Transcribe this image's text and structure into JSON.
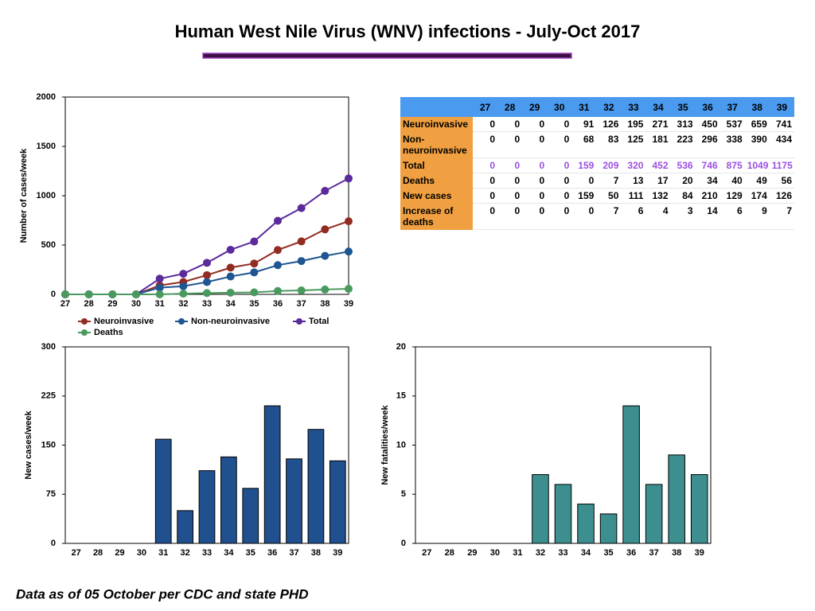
{
  "title": "Human West Nile Virus (WNV) infections - July-Oct 2017",
  "footnote": "Data as of 05 October per CDC and state PHD",
  "chart_data": [
    {
      "type": "line",
      "ylabel": "Number of cases/week",
      "categories": [
        "27",
        "28",
        "29",
        "30",
        "31",
        "32",
        "33",
        "34",
        "35",
        "36",
        "37",
        "38",
        "39"
      ],
      "ylim": [
        0,
        2000
      ],
      "yticks": [
        0,
        500,
        1000,
        1500,
        2000
      ],
      "grid": false,
      "legend": "bottom",
      "series": [
        {
          "name": "Neuroinvasive",
          "color": "#922b21",
          "values": [
            0,
            0,
            0,
            0,
            91,
            126,
            195,
            271,
            313,
            450,
            537,
            659,
            741
          ]
        },
        {
          "name": "Non-neuroinvasive",
          "color": "#1f5591",
          "values": [
            0,
            0,
            0,
            0,
            68,
            83,
            125,
            181,
            223,
            296,
            338,
            390,
            434
          ]
        },
        {
          "name": "Total",
          "color": "#5b2a9b",
          "values": [
            0,
            0,
            0,
            0,
            159,
            209,
            320,
            452,
            536,
            746,
            875,
            1049,
            1175
          ]
        },
        {
          "name": "Deaths",
          "color": "#4a9a5f",
          "values": [
            0,
            0,
            0,
            0,
            0,
            7,
            13,
            17,
            20,
            34,
            40,
            49,
            56
          ]
        }
      ]
    },
    {
      "type": "bar",
      "ylabel": "New cases/week",
      "categories": [
        "27",
        "28",
        "29",
        "30",
        "31",
        "32",
        "33",
        "34",
        "35",
        "36",
        "37",
        "38",
        "39"
      ],
      "ylim": [
        0,
        300
      ],
      "yticks": [
        0,
        75,
        150,
        225,
        300
      ],
      "grid": false,
      "color": "#21508f",
      "values": [
        0,
        0,
        0,
        0,
        159,
        50,
        111,
        132,
        84,
        210,
        129,
        174,
        126
      ]
    },
    {
      "type": "bar",
      "ylabel": "New fatalities/week",
      "categories": [
        "27",
        "28",
        "29",
        "30",
        "31",
        "32",
        "33",
        "34",
        "35",
        "36",
        "37",
        "38",
        "39"
      ],
      "ylim": [
        0,
        20
      ],
      "yticks": [
        0,
        5,
        10,
        15,
        20
      ],
      "grid": false,
      "color": "#3d8f8f",
      "values": [
        0,
        0,
        0,
        0,
        0,
        7,
        6,
        4,
        3,
        14,
        6,
        9,
        7
      ]
    }
  ],
  "table": {
    "columns": [
      27,
      28,
      29,
      30,
      31,
      32,
      33,
      34,
      35,
      36,
      37,
      38,
      39
    ],
    "rows": [
      {
        "label": "Neuroinvasive",
        "values": [
          0,
          0,
          0,
          0,
          91,
          126,
          195,
          271,
          313,
          450,
          537,
          659,
          741
        ]
      },
      {
        "label": "Non-neuroinvasive",
        "values": [
          0,
          0,
          0,
          0,
          68,
          83,
          125,
          181,
          223,
          296,
          338,
          390,
          434
        ]
      },
      {
        "label": "Total",
        "values": [
          0,
          0,
          0,
          0,
          159,
          209,
          320,
          452,
          536,
          746,
          875,
          1049,
          1175
        ]
      },
      {
        "label": "Deaths",
        "values": [
          0,
          0,
          0,
          0,
          0,
          7,
          13,
          17,
          20,
          34,
          40,
          49,
          56
        ]
      },
      {
        "label": "New cases",
        "values": [
          0,
          0,
          0,
          0,
          159,
          50,
          111,
          132,
          84,
          210,
          129,
          174,
          126
        ]
      },
      {
        "label": "Increase of deaths",
        "values": [
          0,
          0,
          0,
          0,
          0,
          7,
          6,
          4,
          3,
          14,
          6,
          9,
          7
        ]
      }
    ]
  }
}
